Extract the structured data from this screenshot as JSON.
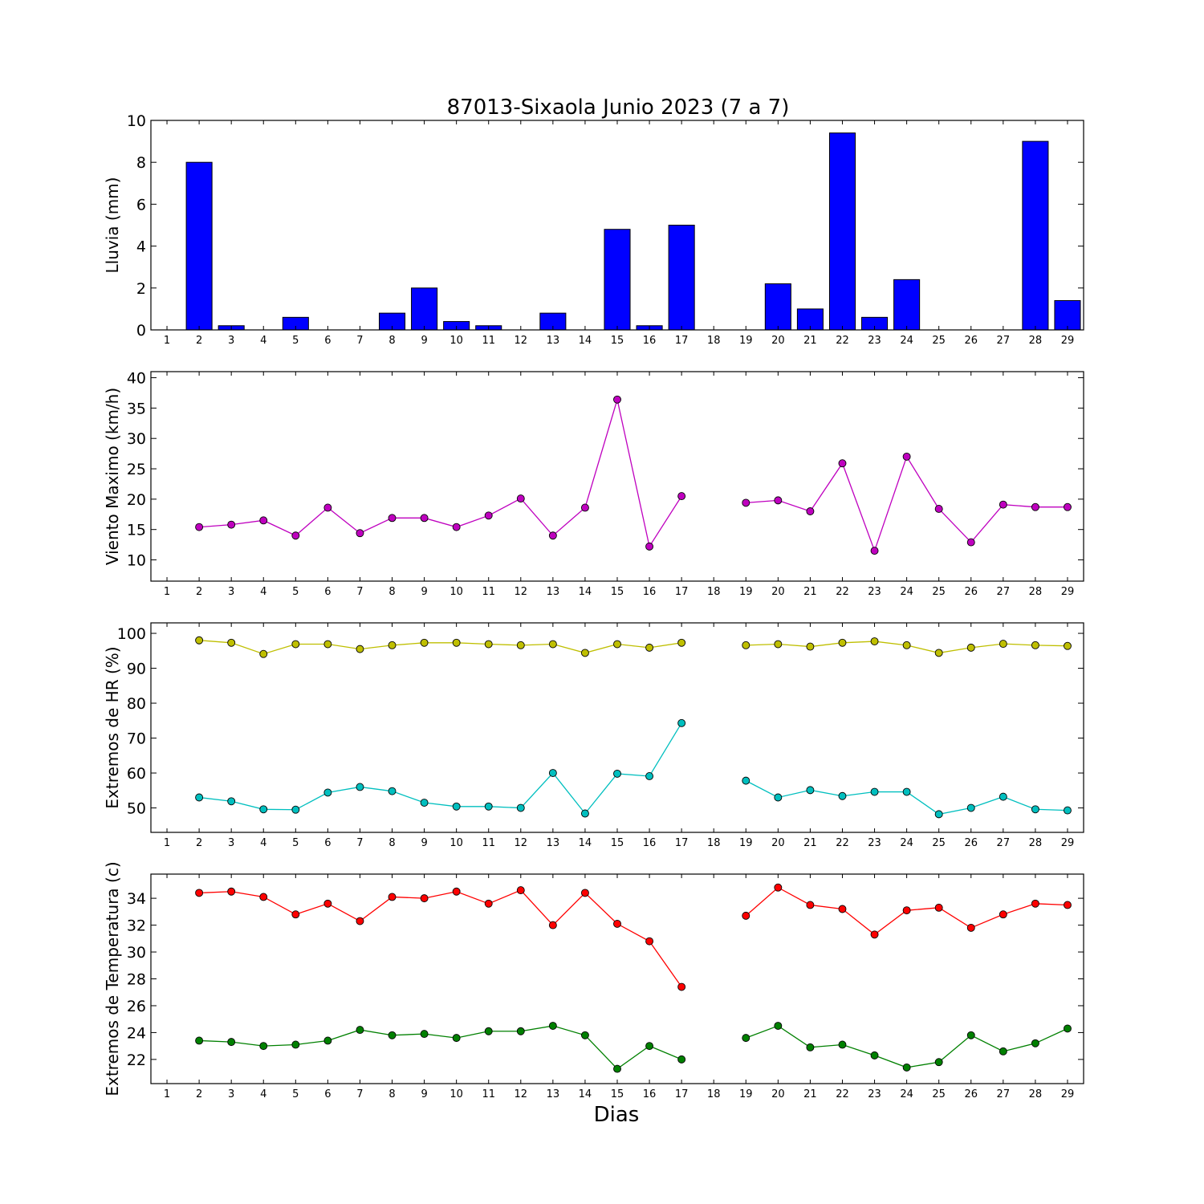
{
  "chart_data": [
    {
      "type": "bar",
      "title": "87013-Sixaola Junio 2023  (7 a 7)",
      "ylabel": "Lluvia (mm)",
      "xlabel": "",
      "ylim": [
        0,
        10
      ],
      "yticks": [
        0,
        2,
        4,
        6,
        8,
        10
      ],
      "x": [
        1,
        2,
        3,
        4,
        5,
        6,
        7,
        8,
        9,
        10,
        11,
        12,
        13,
        14,
        15,
        16,
        17,
        18,
        19,
        20,
        21,
        22,
        23,
        24,
        25,
        26,
        27,
        28,
        29
      ],
      "series": [
        {
          "color": "#0000ff",
          "values": [
            0,
            8.0,
            0.2,
            0,
            0.6,
            0,
            0,
            0.8,
            2.0,
            0.4,
            0.2,
            0,
            0.8,
            0,
            4.8,
            0.2,
            5.0,
            0,
            0,
            2.2,
            1.0,
            9.4,
            0.6,
            2.4,
            0,
            0,
            0,
            9.0,
            1.4
          ]
        }
      ]
    },
    {
      "type": "line",
      "ylabel": "Viento Maximo (km/h)",
      "xlabel": "",
      "ylim": [
        6.5,
        41
      ],
      "yticks": [
        10,
        15,
        20,
        25,
        30,
        35,
        40
      ],
      "x": [
        1,
        2,
        3,
        4,
        5,
        6,
        7,
        8,
        9,
        10,
        11,
        12,
        13,
        14,
        15,
        16,
        17,
        18,
        19,
        20,
        21,
        22,
        23,
        24,
        25,
        26,
        27,
        28,
        29
      ],
      "series": [
        {
          "color": "#bf00bf",
          "values": [
            null,
            15.4,
            15.8,
            16.5,
            14.0,
            18.6,
            14.4,
            16.9,
            16.9,
            15.4,
            17.3,
            20.1,
            14.0,
            18.6,
            36.4,
            12.2,
            20.5,
            null,
            19.4,
            19.8,
            18.0,
            25.9,
            11.5,
            27.0,
            18.4,
            12.9,
            19.1,
            18.7,
            18.7
          ]
        }
      ]
    },
    {
      "type": "line",
      "ylabel": "Extremos de HR (%)",
      "xlabel": "",
      "ylim": [
        43,
        103
      ],
      "yticks": [
        50,
        60,
        70,
        80,
        90,
        100
      ],
      "x": [
        1,
        2,
        3,
        4,
        5,
        6,
        7,
        8,
        9,
        10,
        11,
        12,
        13,
        14,
        15,
        16,
        17,
        18,
        19,
        20,
        21,
        22,
        23,
        24,
        25,
        26,
        27,
        28,
        29
      ],
      "series": [
        {
          "color": "#bfbf00",
          "values": [
            null,
            98.0,
            97.3,
            94.1,
            96.9,
            96.9,
            95.5,
            96.6,
            97.3,
            97.3,
            96.9,
            96.6,
            96.9,
            94.4,
            96.9,
            95.9,
            97.3,
            null,
            96.6,
            96.9,
            96.2,
            97.3,
            97.7,
            96.6,
            94.4,
            95.9,
            97.0,
            96.6,
            96.4
          ]
        },
        {
          "color": "#00bfbf",
          "values": [
            null,
            53.0,
            51.9,
            49.6,
            49.5,
            54.4,
            56.0,
            54.8,
            51.5,
            50.4,
            50.4,
            50.0,
            60.0,
            48.4,
            59.8,
            59.1,
            74.3,
            null,
            57.8,
            53.0,
            55.1,
            53.4,
            54.6,
            54.6,
            48.2,
            50.0,
            53.2,
            49.6,
            49.3
          ]
        }
      ]
    },
    {
      "type": "line",
      "ylabel": "Extremos de Temperatura (c)",
      "xlabel": "Dias",
      "ylim": [
        20.2,
        35.8
      ],
      "yticks": [
        22,
        24,
        26,
        28,
        30,
        32,
        34
      ],
      "x": [
        1,
        2,
        3,
        4,
        5,
        6,
        7,
        8,
        9,
        10,
        11,
        12,
        13,
        14,
        15,
        16,
        17,
        18,
        19,
        20,
        21,
        22,
        23,
        24,
        25,
        26,
        27,
        28,
        29
      ],
      "series": [
        {
          "color": "#ff0000",
          "values": [
            null,
            34.4,
            34.5,
            34.1,
            32.8,
            33.6,
            32.3,
            34.1,
            34.0,
            34.5,
            33.6,
            34.6,
            32.0,
            34.4,
            32.1,
            30.8,
            27.4,
            null,
            32.7,
            34.8,
            33.5,
            33.2,
            31.3,
            33.1,
            33.3,
            31.8,
            32.8,
            33.6,
            33.5
          ]
        },
        {
          "color": "#008000",
          "values": [
            null,
            23.4,
            23.3,
            23.0,
            23.1,
            23.4,
            24.2,
            23.8,
            23.9,
            23.6,
            24.1,
            24.1,
            24.5,
            23.8,
            21.3,
            23.0,
            22.0,
            null,
            23.6,
            24.5,
            22.9,
            23.1,
            22.3,
            21.4,
            21.8,
            23.8,
            22.6,
            23.2,
            24.3
          ]
        }
      ]
    }
  ]
}
